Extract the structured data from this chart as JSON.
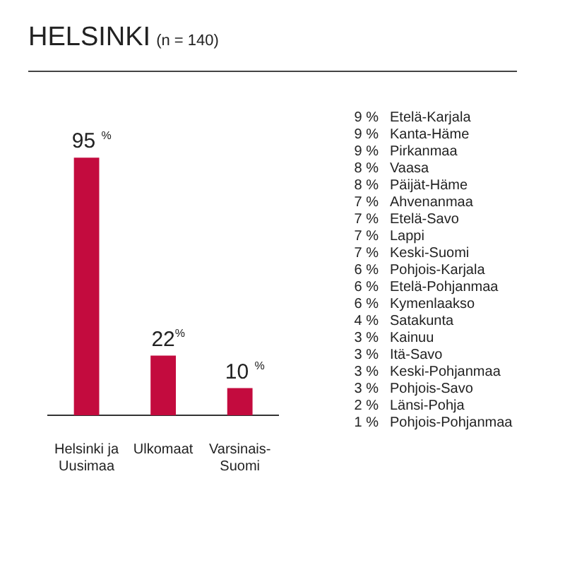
{
  "chart_data": [
    {
      "type": "bar",
      "title": "HELSINKI",
      "subtitle": "(n = 140)",
      "categories": [
        "Helsinki ja Uusimaa",
        "Ulkomaat",
        "Varsinais-Suomi"
      ],
      "values": [
        95,
        22,
        10
      ],
      "color": "#c30b3e",
      "value_labels": [
        "95 $^{%}$",
        "22$^{%}$",
        "10 $^{%}$"
      ],
      "tick_labels": "x"
    },
    {
      "type": "other",
      "categories": [
        "Etelä-Karjala",
        "Kanta-Häme",
        "Pirkanmaa",
        "Vaasa",
        "Päijät-Häme",
        "Ahvenanmaa",
        "Etelä-Savo",
        "Lappi",
        "Keski-Suomi",
        "Pohjois-Karjala",
        "Etelä-Pohjanmaa",
        "Kymenlaakso",
        "Satakunta",
        "Kainuu",
        "Itä-Savo",
        "Keski-Pohjanmaa",
        "Pohjois-Savo",
        "Länsi-Pohja",
        "Pohjois-Pohjanmaa"
      ],
      "values": [
        9,
        9,
        9,
        8,
        8,
        7,
        7,
        7,
        7,
        6,
        6,
        6,
        4,
        3,
        3,
        3,
        3,
        2,
        1
      ],
      "value_labels": [
        "9 %",
        "9 %",
        "9 %",
        "8 %",
        "8 %",
        "7 %",
        "7 %",
        "7 %",
        "7 %",
        "6 %",
        "6 %",
        "6 %",
        "4 %",
        "3 %",
        "3 %",
        "3 %",
        "3 %",
        "2 %",
        "1 %"
      ]
    }
  ]
}
